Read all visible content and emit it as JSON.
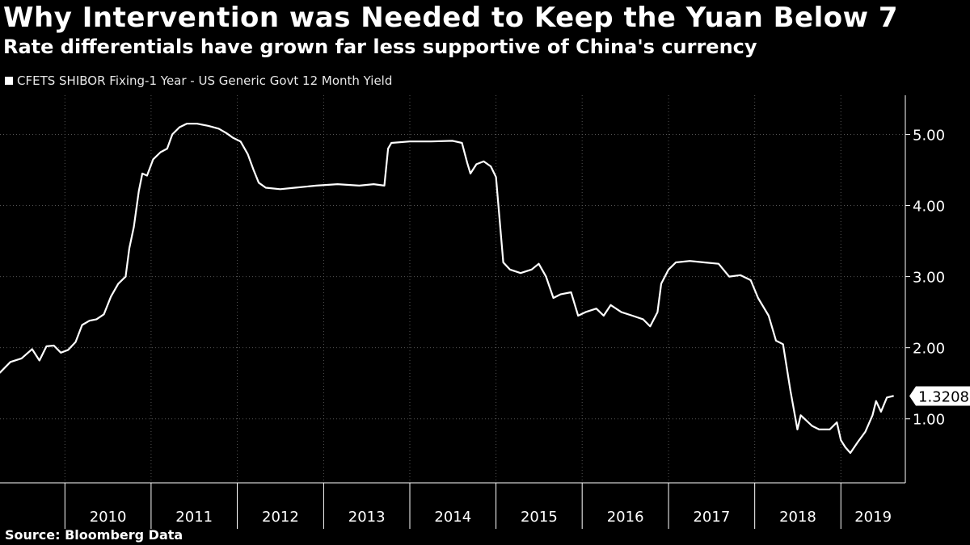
{
  "title": "Why Intervention was Needed to Keep the Yuan Below 7",
  "subtitle": "Rate differentials have grown far less supportive of China's currency",
  "source": "Source: Bloomberg Data",
  "colors": {
    "background": "#000000",
    "line": "#ffffff",
    "grid": "#555555"
  },
  "chart_data": {
    "type": "line",
    "title": "Why Intervention was Needed to Keep the Yuan Below 7",
    "subtitle": "Rate differentials have grown far less supportive of China's currency",
    "legend": {
      "position": "top-left",
      "entries": [
        "CFETS SHIBOR Fixing-1 Year - US Generic Govt 12 Month Yield"
      ]
    },
    "xlabel": "",
    "ylabel": "",
    "x_tick_labels": [
      "2010",
      "2011",
      "2012",
      "2013",
      "2014",
      "2015",
      "2016",
      "2017",
      "2018",
      "2019"
    ],
    "y_ticks": [
      1.0,
      2.0,
      3.0,
      4.0,
      5.0
    ],
    "y_tick_labels": [
      "1.00",
      "2.00",
      "3.00",
      "4.00",
      "5.00"
    ],
    "ylim": [
      0.1,
      5.55
    ],
    "xlim": [
      "2009-04-01",
      "2019-10-01"
    ],
    "grid": "dotted horizontal and vertical",
    "last_value_label": "1.3208",
    "series": [
      {
        "name": "CFETS SHIBOR Fixing-1 Year - US Generic Govt 12 Month Yield",
        "points": [
          [
            "2009-04-01",
            1.65
          ],
          [
            "2009-05-15",
            1.8
          ],
          [
            "2009-07-01",
            1.85
          ],
          [
            "2009-08-15",
            1.98
          ],
          [
            "2009-09-15",
            1.82
          ],
          [
            "2009-10-15",
            2.02
          ],
          [
            "2009-11-15",
            2.03
          ],
          [
            "2009-12-15",
            1.93
          ],
          [
            "2010-01-15",
            1.97
          ],
          [
            "2010-02-15",
            2.08
          ],
          [
            "2010-03-15",
            2.32
          ],
          [
            "2010-04-15",
            2.38
          ],
          [
            "2010-05-15",
            2.4
          ],
          [
            "2010-06-15",
            2.47
          ],
          [
            "2010-07-15",
            2.72
          ],
          [
            "2010-08-15",
            2.9
          ],
          [
            "2010-09-15",
            3.0
          ],
          [
            "2010-10-01",
            3.4
          ],
          [
            "2010-10-20",
            3.7
          ],
          [
            "2010-11-10",
            4.2
          ],
          [
            "2010-11-25",
            4.45
          ],
          [
            "2010-12-15",
            4.42
          ],
          [
            "2011-01-10",
            4.65
          ],
          [
            "2011-02-10",
            4.75
          ],
          [
            "2011-03-10",
            4.8
          ],
          [
            "2011-04-01",
            5.0
          ],
          [
            "2011-05-01",
            5.1
          ],
          [
            "2011-06-01",
            5.15
          ],
          [
            "2011-07-15",
            5.15
          ],
          [
            "2011-09-01",
            5.12
          ],
          [
            "2011-10-15",
            5.08
          ],
          [
            "2011-11-15",
            5.02
          ],
          [
            "2011-12-15",
            4.95
          ],
          [
            "2012-01-15",
            4.9
          ],
          [
            "2012-02-15",
            4.72
          ],
          [
            "2012-03-10",
            4.5
          ],
          [
            "2012-04-01",
            4.32
          ],
          [
            "2012-05-01",
            4.25
          ],
          [
            "2012-07-01",
            4.23
          ],
          [
            "2012-09-01",
            4.25
          ],
          [
            "2012-12-01",
            4.28
          ],
          [
            "2013-03-01",
            4.3
          ],
          [
            "2013-06-01",
            4.28
          ],
          [
            "2013-08-01",
            4.3
          ],
          [
            "2013-09-15",
            4.28
          ],
          [
            "2013-10-01",
            4.8
          ],
          [
            "2013-10-15",
            4.88
          ],
          [
            "2014-01-01",
            4.9
          ],
          [
            "2014-04-01",
            4.9
          ],
          [
            "2014-07-01",
            4.91
          ],
          [
            "2014-08-10",
            4.88
          ],
          [
            "2014-09-01",
            4.6
          ],
          [
            "2014-09-15",
            4.45
          ],
          [
            "2014-10-10",
            4.58
          ],
          [
            "2014-11-10",
            4.62
          ],
          [
            "2014-12-10",
            4.55
          ],
          [
            "2015-01-01",
            4.4
          ],
          [
            "2015-02-01",
            3.2
          ],
          [
            "2015-03-01",
            3.1
          ],
          [
            "2015-04-15",
            3.05
          ],
          [
            "2015-06-01",
            3.1
          ],
          [
            "2015-07-01",
            3.18
          ],
          [
            "2015-08-01",
            3.0
          ],
          [
            "2015-09-01",
            2.7
          ],
          [
            "2015-10-01",
            2.75
          ],
          [
            "2015-11-15",
            2.78
          ],
          [
            "2015-12-15",
            2.45
          ],
          [
            "2016-01-15",
            2.5
          ],
          [
            "2016-03-01",
            2.55
          ],
          [
            "2016-04-01",
            2.45
          ],
          [
            "2016-05-01",
            2.6
          ],
          [
            "2016-06-15",
            2.5
          ],
          [
            "2016-08-01",
            2.45
          ],
          [
            "2016-09-15",
            2.4
          ],
          [
            "2016-10-15",
            2.3
          ],
          [
            "2016-11-15",
            2.5
          ],
          [
            "2016-12-01",
            2.9
          ],
          [
            "2017-01-01",
            3.1
          ],
          [
            "2017-02-01",
            3.2
          ],
          [
            "2017-04-01",
            3.22
          ],
          [
            "2017-06-01",
            3.2
          ],
          [
            "2017-08-01",
            3.18
          ],
          [
            "2017-09-15",
            3.0
          ],
          [
            "2017-11-01",
            3.02
          ],
          [
            "2017-12-15",
            2.95
          ],
          [
            "2018-01-15",
            2.7
          ],
          [
            "2018-03-01",
            2.45
          ],
          [
            "2018-04-01",
            2.1
          ],
          [
            "2018-05-01",
            2.05
          ],
          [
            "2018-06-01",
            1.4
          ],
          [
            "2018-07-01",
            0.85
          ],
          [
            "2018-07-15",
            1.05
          ],
          [
            "2018-09-01",
            0.9
          ],
          [
            "2018-10-01",
            0.85
          ],
          [
            "2018-11-15",
            0.85
          ],
          [
            "2018-12-15",
            0.95
          ],
          [
            "2019-01-01",
            0.7
          ],
          [
            "2019-01-20",
            0.6
          ],
          [
            "2019-02-10",
            0.52
          ],
          [
            "2019-03-15",
            0.68
          ],
          [
            "2019-04-15",
            0.82
          ],
          [
            "2019-05-15",
            1.05
          ],
          [
            "2019-05-30",
            1.25
          ],
          [
            "2019-06-20",
            1.1
          ],
          [
            "2019-07-15",
            1.3
          ],
          [
            "2019-08-10",
            1.3208
          ]
        ]
      }
    ]
  }
}
